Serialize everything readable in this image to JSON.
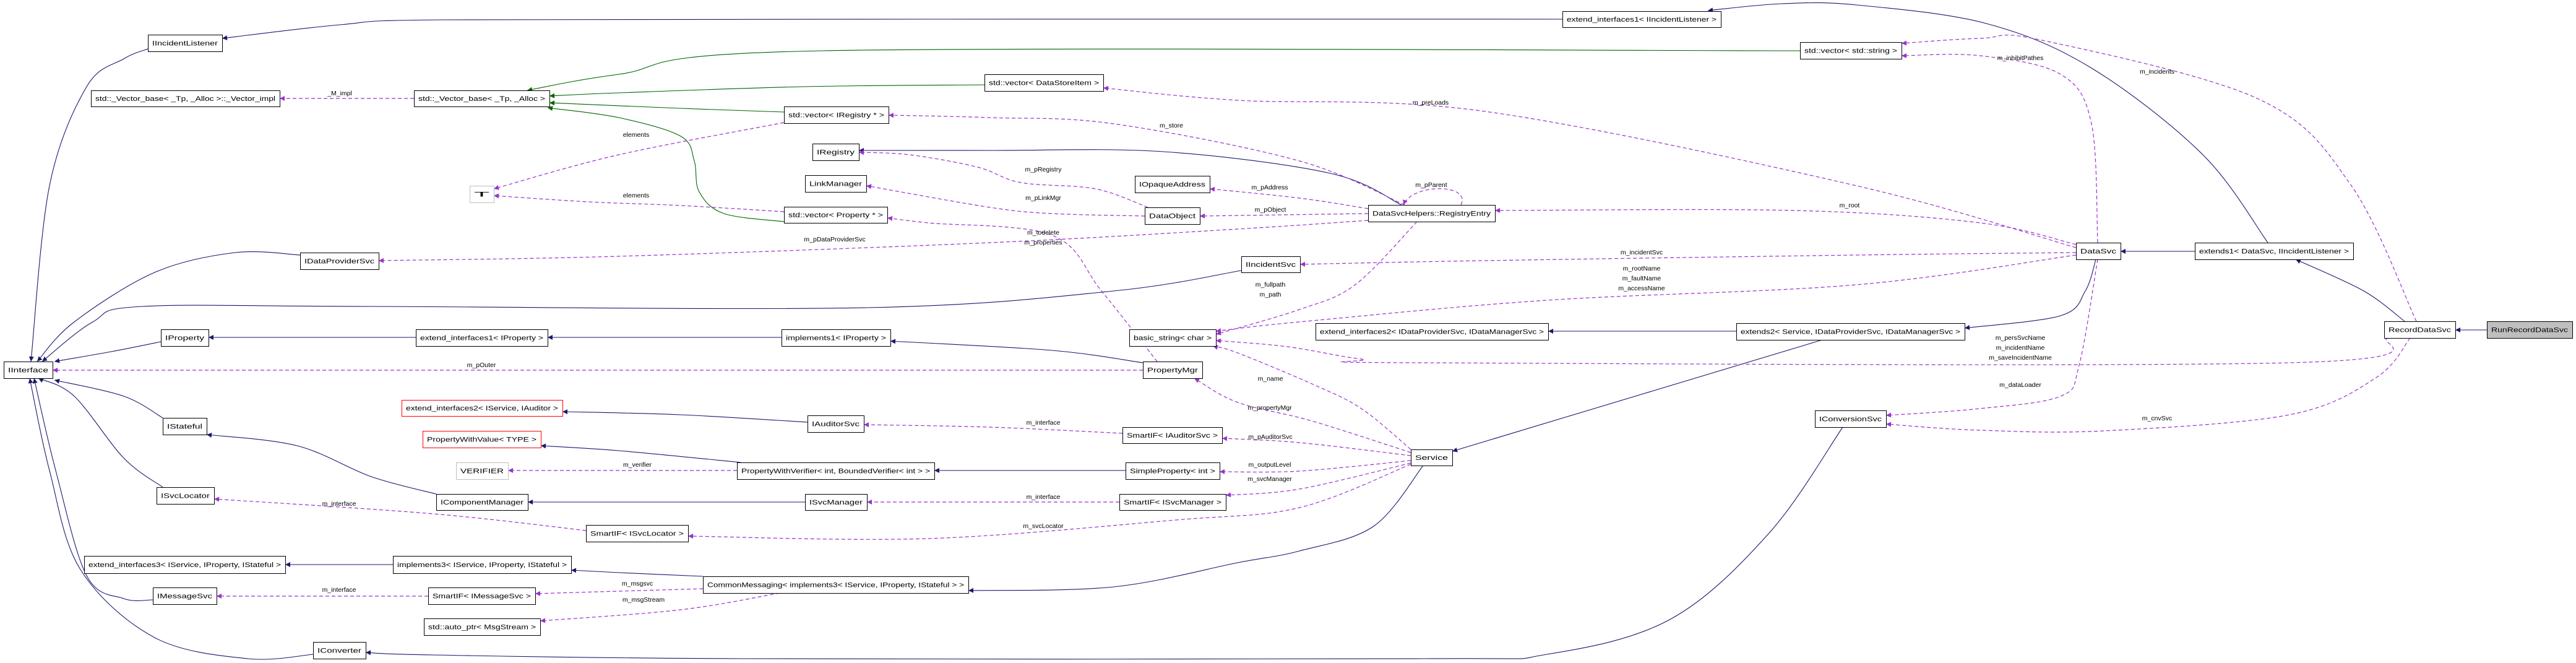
{
  "colors": {
    "inherit": "#191970",
    "template": "#006400",
    "usage": "#9a32cd",
    "node_border": "#000000",
    "undocumented_border": "#ff0000",
    "external_border": "#bfbfbf",
    "focus_fill": "#bfbfbf",
    "node_fill": "#ffffff"
  },
  "nodes": [
    {
      "id": "IIncidentListener",
      "label": "IIncidentListener",
      "style": "normal"
    },
    {
      "id": "Vector_impl",
      "label": "std::_Vector_base< _Tp, _Alloc >::_Vector_impl",
      "style": "normal"
    },
    {
      "id": "Vector_base",
      "label": "std::_Vector_base< _Tp, _Alloc >",
      "style": "normal"
    },
    {
      "id": "T",
      "label": "T",
      "style": "external"
    },
    {
      "id": "IDataProviderSvc",
      "label": "IDataProviderSvc",
      "style": "normal"
    },
    {
      "id": "IProperty",
      "label": "IProperty",
      "style": "normal"
    },
    {
      "id": "ext1IProperty",
      "label": "extend_interfaces1< IProperty >",
      "style": "normal"
    },
    {
      "id": "IInterface",
      "label": "IInterface",
      "style": "normal"
    },
    {
      "id": "ext2IServiceIAuditor",
      "label": "extend_interfaces2< IService, IAuditor >",
      "style": "undocumented"
    },
    {
      "id": "PropertyWithValue",
      "label": "PropertyWithValue< TYPE >",
      "style": "undocumented"
    },
    {
      "id": "VERIFIER",
      "label": "VERIFIER",
      "style": "external"
    },
    {
      "id": "IStateful",
      "label": "IStateful",
      "style": "normal"
    },
    {
      "id": "ISvcLocator",
      "label": "ISvcLocator",
      "style": "normal"
    },
    {
      "id": "IComponentManager",
      "label": "IComponentManager",
      "style": "normal"
    },
    {
      "id": "SmartIFISvcLocator",
      "label": "SmartIF< ISvcLocator >",
      "style": "normal"
    },
    {
      "id": "ext3",
      "label": "extend_interfaces3< IService, IProperty, IStateful >",
      "style": "normal"
    },
    {
      "id": "impl3",
      "label": "implements3< IService, IProperty, IStateful >",
      "style": "normal"
    },
    {
      "id": "IMessageSvc",
      "label": "IMessageSvc",
      "style": "normal"
    },
    {
      "id": "SmartIFIMessageSvc",
      "label": "SmartIF< IMessageSvc >",
      "style": "normal"
    },
    {
      "id": "autoptr",
      "label": "std::auto_ptr< MsgStream >",
      "style": "normal"
    },
    {
      "id": "IConverter",
      "label": "IConverter",
      "style": "normal"
    },
    {
      "id": "vecDSI",
      "label": "std::vector< DataStoreItem >",
      "style": "normal"
    },
    {
      "id": "vecIReg",
      "label": "std::vector< IRegistry * >",
      "style": "normal"
    },
    {
      "id": "IRegistry",
      "label": "IRegistry",
      "style": "normal"
    },
    {
      "id": "LinkManager",
      "label": "LinkManager",
      "style": "normal"
    },
    {
      "id": "IOpaqueAddress",
      "label": "IOpaqueAddress",
      "style": "normal"
    },
    {
      "id": "DataObject",
      "label": "DataObject",
      "style": "normal"
    },
    {
      "id": "vecProp",
      "label": "std::vector< Property * >",
      "style": "normal"
    },
    {
      "id": "impl1",
      "label": "implements1< IProperty >",
      "style": "normal"
    },
    {
      "id": "basic_string",
      "label": "basic_string< char >",
      "style": "normal"
    },
    {
      "id": "PropertyMgr",
      "label": "PropertyMgr",
      "style": "normal"
    },
    {
      "id": "IAuditorSvc",
      "label": "IAuditorSvc",
      "style": "normal"
    },
    {
      "id": "SmartIFIAuditorSvc",
      "label": "SmartIF< IAuditorSvc >",
      "style": "normal"
    },
    {
      "id": "PropertyWithVerifier",
      "label": "PropertyWithVerifier< int, BoundedVerifier< int > >",
      "style": "normal"
    },
    {
      "id": "SimpleProperty",
      "label": "SimpleProperty< int >",
      "style": "normal"
    },
    {
      "id": "ISvcManager",
      "label": "ISvcManager",
      "style": "normal"
    },
    {
      "id": "SmartIFISvcManager",
      "label": "SmartIF< ISvcManager >",
      "style": "normal"
    },
    {
      "id": "CommonMessaging",
      "label": "CommonMessaging< implements3< IService, IProperty, IStateful > >",
      "style": "normal"
    },
    {
      "id": "ext1IIL",
      "label": "extend_interfaces1< IIncidentListener >",
      "style": "normal"
    },
    {
      "id": "vecString",
      "label": "std::vector< std::string >",
      "style": "normal"
    },
    {
      "id": "RegistryEntry",
      "label": "DataSvcHelpers::RegistryEntry",
      "style": "normal"
    },
    {
      "id": "IIncidentSvc",
      "label": "IIncidentSvc",
      "style": "normal"
    },
    {
      "id": "ext2IDP",
      "label": "extend_interfaces2< IDataProviderSvc, IDataManagerSvc >",
      "style": "normal"
    },
    {
      "id": "extends2",
      "label": "extends2< Service, IDataProviderSvc, IDataManagerSvc >",
      "style": "normal"
    },
    {
      "id": "DataSvc",
      "label": "DataSvc",
      "style": "normal"
    },
    {
      "id": "extends1",
      "label": "extends1< DataSvc, IIncidentListener >",
      "style": "normal"
    },
    {
      "id": "RecordDataSvc",
      "label": "RecordDataSvc",
      "style": "normal"
    },
    {
      "id": "RunRecordDataSvc",
      "label": "RunRecordDataSvc",
      "style": "focus"
    },
    {
      "id": "Service",
      "label": "Service",
      "style": "normal"
    },
    {
      "id": "IConversionSvc",
      "label": "IConversionSvc",
      "style": "normal"
    }
  ],
  "edges": [
    {
      "from": "IIncidentListener",
      "to": "IInterface",
      "kind": "inherit",
      "label": []
    },
    {
      "from": "IDataProviderSvc",
      "to": "IInterface",
      "kind": "inherit",
      "label": []
    },
    {
      "from": "IIncidentSvc",
      "to": "IInterface",
      "kind": "inherit",
      "label": []
    },
    {
      "from": "IProperty",
      "to": "IInterface",
      "kind": "inherit",
      "label": []
    },
    {
      "from": "IStateful",
      "to": "IInterface",
      "kind": "inherit",
      "label": []
    },
    {
      "from": "ISvcLocator",
      "to": "IInterface",
      "kind": "inherit",
      "label": []
    },
    {
      "from": "IMessageSvc",
      "to": "IInterface",
      "kind": "inherit",
      "label": []
    },
    {
      "from": "IConverter",
      "to": "IInterface",
      "kind": "inherit",
      "label": []
    },
    {
      "from": "ext1IIL",
      "to": "IIncidentListener",
      "kind": "inherit",
      "label": []
    },
    {
      "from": "extends1",
      "to": "ext1IIL",
      "kind": "inherit",
      "label": []
    },
    {
      "from": "extends1",
      "to": "DataSvc",
      "kind": "inherit",
      "label": []
    },
    {
      "from": "RecordDataSvc",
      "to": "extends1",
      "kind": "inherit",
      "label": []
    },
    {
      "from": "RunRecordDataSvc",
      "to": "RecordDataSvc",
      "kind": "inherit",
      "label": []
    },
    {
      "from": "DataSvc",
      "to": "extends2",
      "kind": "inherit",
      "label": []
    },
    {
      "from": "extends2",
      "to": "ext2IDP",
      "kind": "inherit",
      "label": []
    },
    {
      "from": "extends2",
      "to": "Service",
      "kind": "inherit",
      "label": []
    },
    {
      "from": "Service",
      "to": "CommonMessaging",
      "kind": "inherit",
      "label": []
    },
    {
      "from": "CommonMessaging",
      "to": "impl3",
      "kind": "inherit",
      "label": []
    },
    {
      "from": "impl3",
      "to": "ext3",
      "kind": "inherit",
      "label": []
    },
    {
      "from": "ext1IProperty",
      "to": "IProperty",
      "kind": "inherit",
      "label": []
    },
    {
      "from": "impl1",
      "to": "ext1IProperty",
      "kind": "inherit",
      "label": []
    },
    {
      "from": "PropertyMgr",
      "to": "impl1",
      "kind": "inherit",
      "label": []
    },
    {
      "from": "IAuditorSvc",
      "to": "ext2IServiceIAuditor",
      "kind": "inherit",
      "label": []
    },
    {
      "from": "PropertyWithVerifier",
      "to": "PropertyWithValue",
      "kind": "inherit",
      "label": []
    },
    {
      "from": "SimpleProperty",
      "to": "PropertyWithVerifier",
      "kind": "inherit",
      "label": []
    },
    {
      "from": "ISvcManager",
      "to": "IComponentManager",
      "kind": "inherit",
      "label": []
    },
    {
      "from": "IComponentManager",
      "to": "IStateful",
      "kind": "inherit",
      "label": []
    },
    {
      "from": "IConversionSvc",
      "to": "IConverter",
      "kind": "inherit",
      "label": []
    },
    {
      "from": "RegistryEntry",
      "to": "IRegistry",
      "kind": "inherit",
      "label": []
    },
    {
      "from": "vecString",
      "to": "Vector_base",
      "kind": "template",
      "label": []
    },
    {
      "from": "vecDSI",
      "to": "Vector_base",
      "kind": "template",
      "label": []
    },
    {
      "from": "vecIReg",
      "to": "Vector_base",
      "kind": "template",
      "label": []
    },
    {
      "from": "vecProp",
      "to": "Vector_base",
      "kind": "template",
      "label": []
    },
    {
      "from": "Vector_base",
      "to": "Vector_impl",
      "kind": "usage",
      "label": [
        "_M_impl"
      ]
    },
    {
      "from": "vecIReg",
      "to": "T",
      "kind": "usage",
      "label": [
        "elements"
      ]
    },
    {
      "from": "vecProp",
      "to": "T",
      "kind": "usage",
      "label": [
        "elements"
      ]
    },
    {
      "from": "RegistryEntry",
      "to": "IDataProviderSvc",
      "kind": "usage",
      "label": [
        "m_pDataProviderSvc"
      ]
    },
    {
      "from": "PropertyMgr",
      "to": "IInterface",
      "kind": "usage",
      "label": [
        "m_pOuter"
      ]
    },
    {
      "from": "RegistryEntry",
      "to": "vecIReg",
      "kind": "usage",
      "label": [
        "m_store"
      ]
    },
    {
      "from": "DataObject",
      "to": "IRegistry",
      "kind": "usage",
      "label": [
        "m_pRegistry"
      ]
    },
    {
      "from": "DataObject",
      "to": "LinkManager",
      "kind": "usage",
      "label": [
        "m_pLinkMgr"
      ]
    },
    {
      "from": "PropertyMgr",
      "to": "vecProp",
      "kind": "usage",
      "label": [
        "m_todelete",
        "m_properties"
      ]
    },
    {
      "from": "RegistryEntry",
      "to": "IOpaqueAddress",
      "kind": "usage",
      "label": [
        "m_pAddress"
      ]
    },
    {
      "from": "RegistryEntry",
      "to": "DataObject",
      "kind": "usage",
      "label": [
        "m_pObject"
      ]
    },
    {
      "from": "RegistryEntry",
      "to": "RegistryEntry",
      "kind": "usage",
      "label": [
        "m_pParent"
      ]
    },
    {
      "from": "DataSvc",
      "to": "vecDSI",
      "kind": "usage",
      "label": [
        "m_preLoads"
      ]
    },
    {
      "from": "DataSvc",
      "to": "RegistryEntry",
      "kind": "usage",
      "label": [
        "m_root"
      ]
    },
    {
      "from": "DataSvc",
      "to": "IIncidentSvc",
      "kind": "usage",
      "label": [
        "m_incidentSvc"
      ]
    },
    {
      "from": "DataSvc",
      "to": "basic_string",
      "kind": "usage",
      "label": [
        "m_rootName",
        "m_faultName",
        "m_accessName"
      ]
    },
    {
      "from": "RegistryEntry",
      "to": "basic_string",
      "kind": "usage",
      "label": [
        "m_fullpath",
        "m_path"
      ]
    },
    {
      "from": "DataSvc",
      "to": "vecString",
      "kind": "usage",
      "label": [
        "m_inhibitPathes"
      ]
    },
    {
      "from": "RecordDataSvc",
      "to": "vecString",
      "kind": "usage",
      "label": [
        "m_incidents"
      ]
    },
    {
      "from": "DataSvc",
      "to": "IConversionSvc",
      "kind": "usage",
      "label": [
        "m_dataLoader"
      ]
    },
    {
      "from": "RecordDataSvc",
      "to": "IConversionSvc",
      "kind": "usage",
      "label": [
        "m_cnvSvc"
      ]
    },
    {
      "from": "RecordDataSvc",
      "to": "basic_string",
      "kind": "usage",
      "label": [
        "m_persSvcName",
        "m_incidentName",
        "m_saveIncidentName"
      ]
    },
    {
      "from": "Service",
      "to": "basic_string",
      "kind": "usage",
      "label": [
        "m_name"
      ]
    },
    {
      "from": "Service",
      "to": "PropertyMgr",
      "kind": "usage",
      "label": [
        "m_propertyMgr"
      ]
    },
    {
      "from": "Service",
      "to": "SmartIFIAuditorSvc",
      "kind": "usage",
      "label": [
        "m_pAuditorSvc"
      ]
    },
    {
      "from": "Service",
      "to": "SimpleProperty",
      "kind": "usage",
      "label": [
        "m_outputLevel"
      ]
    },
    {
      "from": "Service",
      "to": "SmartIFISvcManager",
      "kind": "usage",
      "label": [
        "m_svcManager"
      ]
    },
    {
      "from": "Service",
      "to": "SmartIFISvcLocator",
      "kind": "usage",
      "label": [
        "m_svcLocator"
      ]
    },
    {
      "from": "SmartIFIAuditorSvc",
      "to": "IAuditorSvc",
      "kind": "usage",
      "label": [
        "m_interface"
      ]
    },
    {
      "from": "SmartIFISvcManager",
      "to": "ISvcManager",
      "kind": "usage",
      "label": [
        "m_interface"
      ]
    },
    {
      "from": "SmartIFISvcLocator",
      "to": "ISvcLocator",
      "kind": "usage",
      "label": [
        "m_interface"
      ]
    },
    {
      "from": "SmartIFIMessageSvc",
      "to": "IMessageSvc",
      "kind": "usage",
      "label": [
        "m_interface"
      ]
    },
    {
      "from": "PropertyWithVerifier",
      "to": "VERIFIER",
      "kind": "usage",
      "label": [
        "m_verifier"
      ]
    },
    {
      "from": "CommonMessaging",
      "to": "SmartIFIMessageSvc",
      "kind": "usage",
      "label": [
        "m_msgsvc"
      ]
    },
    {
      "from": "CommonMessaging",
      "to": "autoptr",
      "kind": "usage",
      "label": [
        "m_msgStream"
      ]
    }
  ]
}
